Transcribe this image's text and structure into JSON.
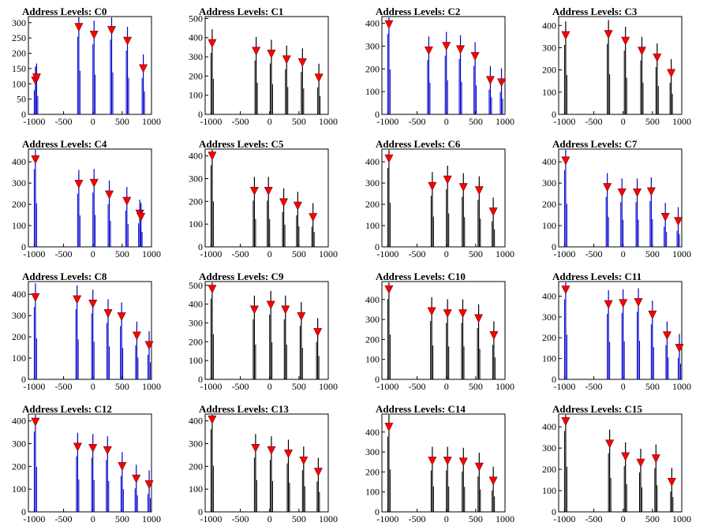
{
  "chart_data": [
    {
      "type": "histogram",
      "title": "Address Levels: C0",
      "x_range": [
        -1100,
        1000
      ],
      "ylim": [
        0,
        320
      ],
      "yticks": [
        0,
        50,
        100,
        150,
        200,
        250,
        300
      ],
      "xticks": [
        -1000,
        -500,
        0,
        500,
        1000
      ],
      "line_color": "#0000cc",
      "marker_color": "#ff0000",
      "peaks": [
        {
          "x": -980,
          "y": 110
        },
        {
          "x": -960,
          "y": 120
        },
        {
          "x": -240,
          "y": 285
        },
        {
          "x": 20,
          "y": 260
        },
        {
          "x": 320,
          "y": 275
        },
        {
          "x": 590,
          "y": 240
        },
        {
          "x": 860,
          "y": 150
        }
      ]
    },
    {
      "type": "histogram",
      "title": "Address Levels: C1",
      "x_range": [
        -1100,
        1000
      ],
      "ylim": [
        0,
        510
      ],
      "yticks": [
        0,
        100,
        200,
        300,
        400,
        500
      ],
      "xticks": [
        -1000,
        -500,
        0,
        500,
        1000
      ],
      "line_color": "#000000",
      "marker_color": "#ff0000",
      "peaks": [
        {
          "x": -980,
          "y": 370
        },
        {
          "x": -230,
          "y": 330
        },
        {
          "x": 30,
          "y": 315
        },
        {
          "x": 290,
          "y": 285
        },
        {
          "x": 560,
          "y": 270
        },
        {
          "x": 840,
          "y": 190
        }
      ]
    },
    {
      "type": "histogram",
      "title": "Address Levels: C2",
      "x_range": [
        -1100,
        1000
      ],
      "ylim": [
        0,
        430
      ],
      "yticks": [
        0,
        100,
        200,
        300,
        400
      ],
      "xticks": [
        -1000,
        -500,
        0,
        500,
        1000
      ],
      "line_color": "#0000cc",
      "marker_color": "#ff0000",
      "peaks": [
        {
          "x": -980,
          "y": 395
        },
        {
          "x": -300,
          "y": 280
        },
        {
          "x": 0,
          "y": 300
        },
        {
          "x": 240,
          "y": 285
        },
        {
          "x": 490,
          "y": 255
        },
        {
          "x": 750,
          "y": 150
        },
        {
          "x": 940,
          "y": 140
        }
      ]
    },
    {
      "type": "histogram",
      "title": "Address Levels: C3",
      "x_range": [
        -1100,
        1000
      ],
      "ylim": [
        0,
        440
      ],
      "yticks": [
        0,
        100,
        200,
        300,
        400
      ],
      "xticks": [
        -1000,
        -500,
        0,
        500,
        1000
      ],
      "line_color": "#000000",
      "marker_color": "#ff0000",
      "peaks": [
        {
          "x": -980,
          "y": 355
        },
        {
          "x": -250,
          "y": 360
        },
        {
          "x": 40,
          "y": 330
        },
        {
          "x": 320,
          "y": 285
        },
        {
          "x": 580,
          "y": 255
        },
        {
          "x": 820,
          "y": 185
        }
      ]
    },
    {
      "type": "histogram",
      "title": "Address Levels: C4",
      "x_range": [
        -1100,
        1000
      ],
      "ylim": [
        0,
        460
      ],
      "yticks": [
        0,
        100,
        200,
        300,
        400
      ],
      "xticks": [
        -1000,
        -500,
        0,
        500,
        1000
      ],
      "line_color": "#0000cc",
      "marker_color": "#ff0000",
      "peaks": [
        {
          "x": -980,
          "y": 410
        },
        {
          "x": -240,
          "y": 295
        },
        {
          "x": 20,
          "y": 300
        },
        {
          "x": 280,
          "y": 245
        },
        {
          "x": 580,
          "y": 215
        },
        {
          "x": 800,
          "y": 155
        },
        {
          "x": 820,
          "y": 140
        }
      ]
    },
    {
      "type": "histogram",
      "title": "Address Levels: C5",
      "x_range": [
        -1100,
        1000
      ],
      "ylim": [
        0,
        430
      ],
      "yticks": [
        0,
        100,
        200,
        300,
        400
      ],
      "xticks": [
        -1000,
        -500,
        0,
        500,
        1000
      ],
      "line_color": "#000000",
      "marker_color": "#ff0000",
      "peaks": [
        {
          "x": -980,
          "y": 400
        },
        {
          "x": -260,
          "y": 245
        },
        {
          "x": -20,
          "y": 245
        },
        {
          "x": 240,
          "y": 195
        },
        {
          "x": 480,
          "y": 180
        },
        {
          "x": 740,
          "y": 130
        }
      ]
    },
    {
      "type": "histogram",
      "title": "Address Levels: C6",
      "x_range": [
        -1100,
        1000
      ],
      "ylim": [
        0,
        460
      ],
      "yticks": [
        0,
        100,
        200,
        300,
        400
      ],
      "xticks": [
        -1000,
        -500,
        0,
        500,
        1000
      ],
      "line_color": "#000000",
      "marker_color": "#ff0000",
      "peaks": [
        {
          "x": -980,
          "y": 415
        },
        {
          "x": -240,
          "y": 285
        },
        {
          "x": 20,
          "y": 315
        },
        {
          "x": 290,
          "y": 280
        },
        {
          "x": 560,
          "y": 265
        },
        {
          "x": 800,
          "y": 165
        }
      ]
    },
    {
      "type": "histogram",
      "title": "Address Levels: C7",
      "x_range": [
        -1100,
        1000
      ],
      "ylim": [
        0,
        460
      ],
      "yticks": [
        0,
        100,
        200,
        300,
        400
      ],
      "xticks": [
        -1000,
        -500,
        0,
        500,
        1000
      ],
      "line_color": "#0000cc",
      "marker_color": "#ff0000",
      "peaks": [
        {
          "x": -980,
          "y": 405
        },
        {
          "x": -270,
          "y": 280
        },
        {
          "x": -20,
          "y": 255
        },
        {
          "x": 240,
          "y": 255
        },
        {
          "x": 480,
          "y": 260
        },
        {
          "x": 720,
          "y": 140
        },
        {
          "x": 940,
          "y": 120
        }
      ]
    },
    {
      "type": "histogram",
      "title": "Address Levels: C8",
      "x_range": [
        -1100,
        1000
      ],
      "ylim": [
        0,
        460
      ],
      "yticks": [
        0,
        100,
        200,
        300,
        400
      ],
      "xticks": [
        -1000,
        -500,
        0,
        500,
        1000
      ],
      "line_color": "#0000cc",
      "marker_color": "#ff0000",
      "peaks": [
        {
          "x": -980,
          "y": 385
        },
        {
          "x": -270,
          "y": 375
        },
        {
          "x": 0,
          "y": 355
        },
        {
          "x": 260,
          "y": 310
        },
        {
          "x": 490,
          "y": 295
        },
        {
          "x": 750,
          "y": 205
        },
        {
          "x": 960,
          "y": 160
        }
      ]
    },
    {
      "type": "histogram",
      "title": "Address Levels: C9",
      "x_range": [
        -1100,
        1000
      ],
      "ylim": [
        0,
        520
      ],
      "yticks": [
        0,
        100,
        200,
        300,
        400,
        500
      ],
      "xticks": [
        -1000,
        -500,
        0,
        500,
        1000
      ],
      "line_color": "#000000",
      "marker_color": "#ff0000",
      "peaks": [
        {
          "x": -980,
          "y": 480
        },
        {
          "x": -260,
          "y": 370
        },
        {
          "x": 20,
          "y": 395
        },
        {
          "x": 270,
          "y": 370
        },
        {
          "x": 540,
          "y": 335
        },
        {
          "x": 820,
          "y": 250
        }
      ]
    },
    {
      "type": "histogram",
      "title": "Address Levels: C10",
      "x_range": [
        -1100,
        1000
      ],
      "ylim": [
        0,
        490
      ],
      "yticks": [
        0,
        100,
        200,
        300,
        400
      ],
      "xticks": [
        -1000,
        -500,
        0,
        500,
        1000
      ],
      "line_color": "#000000",
      "marker_color": "#ff0000",
      "peaks": [
        {
          "x": -980,
          "y": 450
        },
        {
          "x": -250,
          "y": 340
        },
        {
          "x": 20,
          "y": 330
        },
        {
          "x": 280,
          "y": 330
        },
        {
          "x": 550,
          "y": 305
        },
        {
          "x": 810,
          "y": 220
        }
      ]
    },
    {
      "type": "histogram",
      "title": "Address Levels: C11",
      "x_range": [
        -1100,
        1000
      ],
      "ylim": [
        0,
        470
      ],
      "yticks": [
        0,
        100,
        200,
        300,
        400
      ],
      "xticks": [
        -1000,
        -500,
        0,
        500,
        1000
      ],
      "line_color": "#0000cc",
      "marker_color": "#ff0000",
      "peaks": [
        {
          "x": -980,
          "y": 430
        },
        {
          "x": -250,
          "y": 360
        },
        {
          "x": 0,
          "y": 365
        },
        {
          "x": 260,
          "y": 370
        },
        {
          "x": 500,
          "y": 310
        },
        {
          "x": 750,
          "y": 210
        },
        {
          "x": 960,
          "y": 150
        }
      ]
    },
    {
      "type": "histogram",
      "title": "Address Levels: C12",
      "x_range": [
        -1100,
        1000
      ],
      "ylim": [
        0,
        430
      ],
      "yticks": [
        0,
        100,
        200,
        300,
        400
      ],
      "xticks": [
        -1000,
        -500,
        0,
        500,
        1000
      ],
      "line_color": "#0000cc",
      "marker_color": "#ff0000",
      "peaks": [
        {
          "x": -980,
          "y": 395
        },
        {
          "x": -260,
          "y": 285
        },
        {
          "x": 0,
          "y": 280
        },
        {
          "x": 250,
          "y": 270
        },
        {
          "x": 500,
          "y": 200
        },
        {
          "x": 740,
          "y": 145
        },
        {
          "x": 960,
          "y": 120
        }
      ]
    },
    {
      "type": "histogram",
      "title": "Address Levels: C13",
      "x_range": [
        -1100,
        1000
      ],
      "ylim": [
        0,
        430
      ],
      "yticks": [
        0,
        100,
        200,
        300,
        400
      ],
      "xticks": [
        -1000,
        -500,
        0,
        500,
        1000
      ],
      "line_color": "#000000",
      "marker_color": "#ff0000",
      "peaks": [
        {
          "x": -980,
          "y": 405
        },
        {
          "x": -240,
          "y": 280
        },
        {
          "x": 30,
          "y": 270
        },
        {
          "x": 320,
          "y": 255
        },
        {
          "x": 580,
          "y": 225
        },
        {
          "x": 830,
          "y": 175
        }
      ]
    },
    {
      "type": "histogram",
      "title": "Address Levels: C14",
      "x_range": [
        -1100,
        1000
      ],
      "ylim": [
        0,
        490
      ],
      "yticks": [
        0,
        100,
        200,
        300,
        400
      ],
      "xticks": [
        -1000,
        -500,
        0,
        500,
        1000
      ],
      "line_color": "#000000",
      "marker_color": "#ff0000",
      "peaks": [
        {
          "x": -980,
          "y": 425
        },
        {
          "x": -240,
          "y": 255
        },
        {
          "x": 20,
          "y": 255
        },
        {
          "x": 290,
          "y": 250
        },
        {
          "x": 560,
          "y": 225
        },
        {
          "x": 800,
          "y": 155
        }
      ]
    },
    {
      "type": "histogram",
      "title": "Address Levels: C15",
      "x_range": [
        -1100,
        1000
      ],
      "ylim": [
        0,
        460
      ],
      "yticks": [
        0,
        100,
        200,
        300,
        400
      ],
      "xticks": [
        -1000,
        -500,
        0,
        500,
        1000
      ],
      "line_color": "#000000",
      "marker_color": "#ff0000",
      "peaks": [
        {
          "x": -980,
          "y": 425
        },
        {
          "x": -230,
          "y": 320
        },
        {
          "x": 40,
          "y": 260
        },
        {
          "x": 300,
          "y": 230
        },
        {
          "x": 560,
          "y": 250
        },
        {
          "x": 830,
          "y": 140
        }
      ]
    }
  ]
}
